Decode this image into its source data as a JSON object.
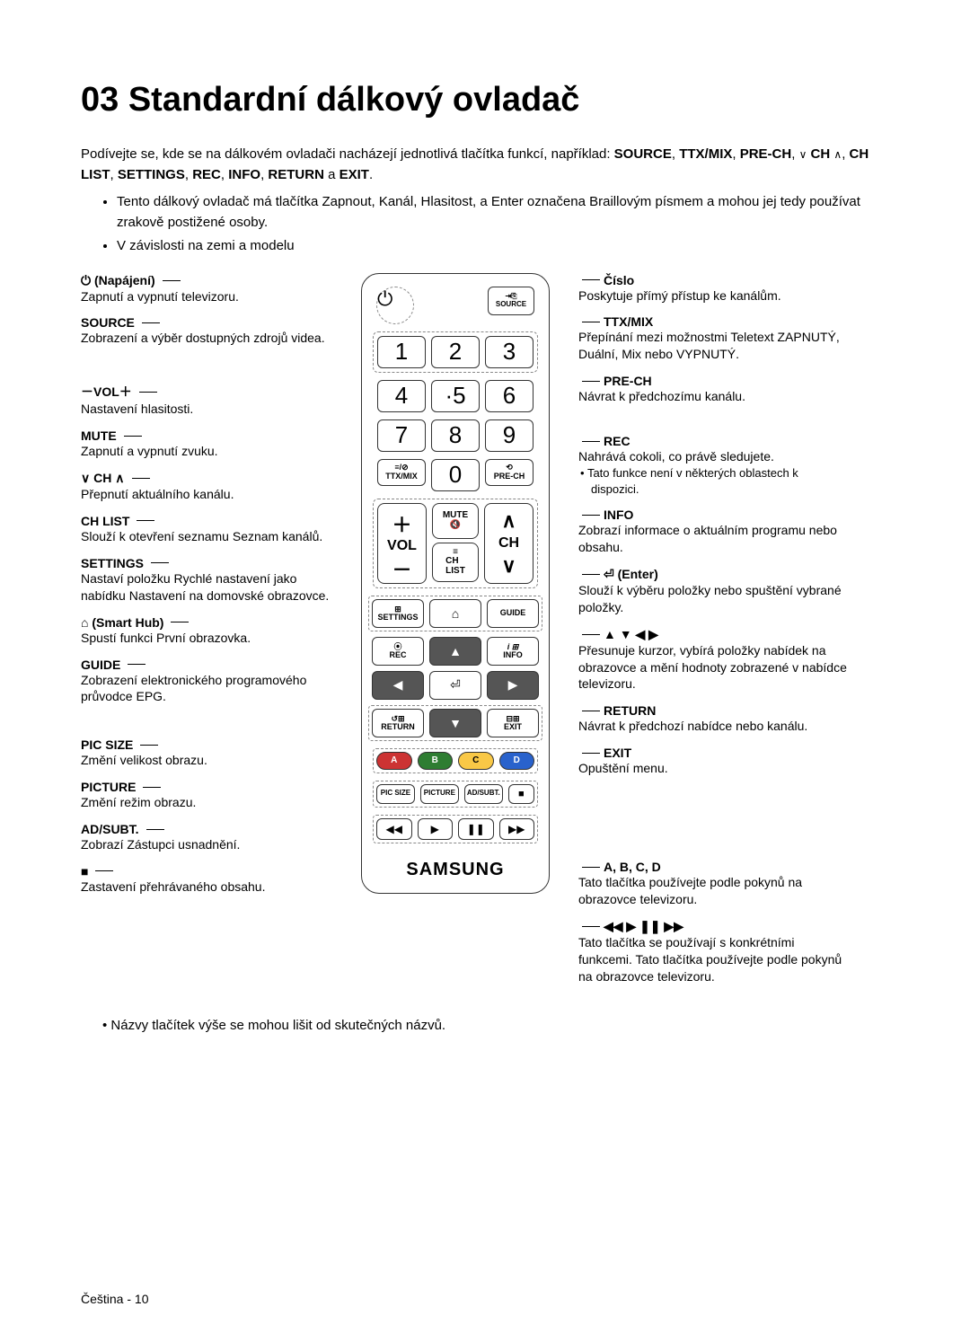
{
  "title": "03  Standardní dálkový ovladač",
  "intro_prefix": "Podívejte se, kde se na dálkovém ovladači nacházejí jednotlivá tlačítka funkcí, například: ",
  "intro_bold1": "SOURCE",
  "intro_mid1": ", ",
  "intro_bold2": "TTX/MIX",
  "intro_mid2": ", ",
  "intro_bold3": "PRE-CH",
  "intro_mid3": ", ",
  "intro_ch": "CH",
  "intro_mid4": ", ",
  "intro_bold4": "CH LIST",
  "intro_mid5": ", ",
  "intro_bold5": "SETTINGS",
  "intro_mid6": ", ",
  "intro_bold6": "REC",
  "intro_mid7": ", ",
  "intro_bold7": "INFO",
  "intro_mid8": ", ",
  "intro_bold8": "RETURN",
  "intro_mid9": " a ",
  "intro_bold9": "EXIT",
  "intro_end": ".",
  "bullets": [
    "Tento dálkový ovladač má tlačítka Zapnout, Kanál, Hlasitost, a Enter označena Braillovým písmem a mohou jej tedy používat zrakově postižené osoby.",
    "V závislosti na zemi a modelu"
  ],
  "left": [
    {
      "label": "⏻ (Napájení)",
      "desc": "Zapnutí a vypnutí televizoru.",
      "space_after": 0
    },
    {
      "label": "SOURCE",
      "desc": "Zobrazení a výběr dostupných zdrojů videa.",
      "space_after": 28
    },
    {
      "label": "－VOL＋",
      "desc": "Nastavení hlasitosti.",
      "space_after": 0
    },
    {
      "label": "MUTE",
      "desc": "Zapnutí a vypnutí zvuku.",
      "space_after": 0
    },
    {
      "label": "∨ CH ∧",
      "desc": "Přepnutí aktuálního kanálu.",
      "space_after": 0
    },
    {
      "label": "CH LIST",
      "desc": "Slouží k otevření seznamu Seznam kanálů.",
      "space_after": 0
    },
    {
      "label": "SETTINGS",
      "desc": "Nastaví položku Rychlé nastavení jako nabídku Nastavení na domovské obrazovce.",
      "space_after": 0
    },
    {
      "label": "⌂ (Smart Hub)",
      "desc": "Spustí funkci První obrazovka.",
      "space_after": 0
    },
    {
      "label": "GUIDE",
      "desc": "Zobrazení elektronického programového průvodce EPG.",
      "space_after": 24
    },
    {
      "label": "PIC SIZE",
      "desc": "Změní velikost obrazu.",
      "space_after": 0
    },
    {
      "label": "PICTURE",
      "desc": "Změní režim obrazu.",
      "space_after": 0
    },
    {
      "label": "AD/SUBT.",
      "desc": "Zobrazí Zástupci usnadnění.",
      "space_after": 0
    },
    {
      "label": "■",
      "desc": "Zastavení přehrávaného obsahu.",
      "space_after": 0
    }
  ],
  "right": [
    {
      "label": "Číslo",
      "desc": "Poskytuje přímý přístup ke kanálům.",
      "space_after": 0
    },
    {
      "label": "TTX/MIX",
      "desc": "Přepínání mezi možnostmi Teletext ZAPNUTÝ, Duální, Mix nebo VYPNUTÝ.",
      "space_after": 0
    },
    {
      "label": "PRE-CH",
      "desc": "Návrat k předchozímu kanálu.",
      "space_after": 20
    },
    {
      "label": "REC",
      "desc": "Nahrává cokoli, co právě sledujete.",
      "sub": "Tato funkce není v některých oblastech k dispozici.",
      "space_after": 0
    },
    {
      "label": "INFO",
      "desc": "Zobrazí informace o aktuálním programu nebo obsahu.",
      "space_after": 0
    },
    {
      "label": "⏎ (Enter)",
      "desc": "Slouží k výběru položky nebo spuštění vybrané položky.",
      "space_after": 0
    },
    {
      "label": "▲ ▼ ◀ ▶",
      "desc": "Přesunuje kurzor, vybírá položky nabídek na obrazovce a mění hodnoty zobrazené v nabídce televizoru.",
      "space_after": 0
    },
    {
      "label": "RETURN",
      "desc": "Návrat k předchozí nabídce nebo kanálu.",
      "space_after": 0
    },
    {
      "label": "EXIT",
      "desc": "Opuštění menu.",
      "space_after": 80
    },
    {
      "label": "A, B, C, D",
      "desc": "Tato tlačítka používejte podle pokynů na obrazovce televizoru.",
      "space_after": 0
    },
    {
      "label": "◀◀ ▶ ❚❚ ▶▶",
      "desc": "Tato tlačítka se používají s konkrétními funkcemi. Tato tlačítka používejte podle pokynů na obrazovce televizoru.",
      "space_after": 0
    }
  ],
  "remote": {
    "source": "SOURCE",
    "ttxmix": "TTX/MIX",
    "prech": "PRE-CH",
    "mute": "MUTE",
    "vol": "VOL",
    "ch": "CH",
    "chlist": "CH\nLIST",
    "settings": "SETTINGS",
    "guide": "GUIDE",
    "rec": "REC",
    "info": "INFO",
    "return": "RETURN",
    "exit": "EXIT",
    "picsize": "PIC SIZE",
    "picture": "PICTURE",
    "adsubt": "AD/SUBT.",
    "brand": "SAMSUNG",
    "nums": [
      "1",
      "2",
      "3",
      "4",
      "·5",
      "6",
      "7",
      "8",
      "9",
      "0"
    ],
    "colors": [
      "A",
      "B",
      "C",
      "D"
    ]
  },
  "footer_note": "Názvy tlačítek výše se mohou lišit od skutečných názvů.",
  "page_foot": "Čeština - 10"
}
